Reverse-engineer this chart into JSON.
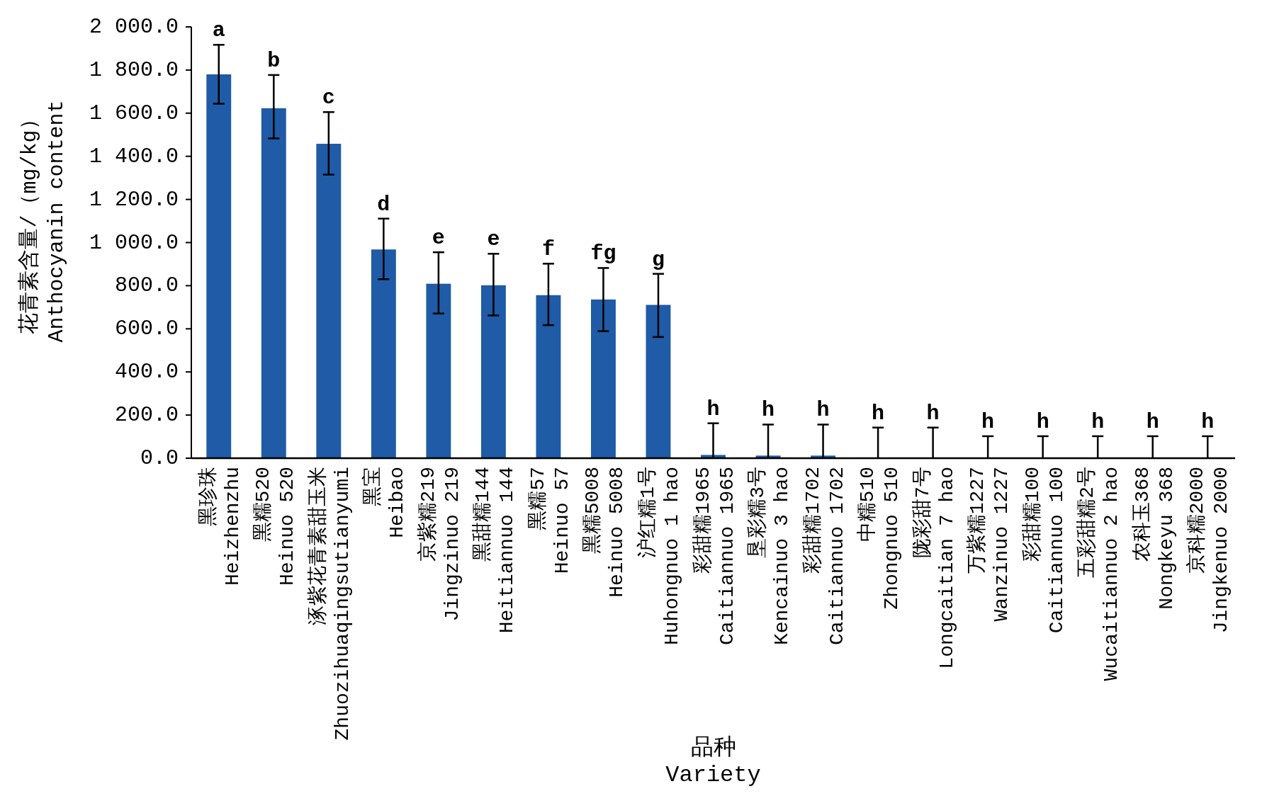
{
  "chart_data": {
    "type": "bar",
    "xlabel": "品种\nVariety",
    "ylabel": "花青素含量/（mg/kg）\nAnthocyanin content",
    "categories": [
      "黑珍珠\nHeizhenzhu",
      "黑糯520\nHeinuo 520",
      "涿紫花青素甜玉米\nZhuozihuaqingsutianyumi",
      "黑宝\nHeibao",
      "京紫糯219\nJingzinuo 219",
      "黑甜糯144\nHeitiannuo 144",
      "黑糯57\nHeinuo 57",
      "黑糯5008\nHeinuo 5008",
      "沪红糯1号\nHuhongnuo 1 hao",
      "彩甜糯1965\nCaitiannuo 1965",
      "垦彩糯3号\nKencainuo 3 hao",
      "彩甜糯1702\nCaitiannuo 1702",
      "中糯510\nZhongnuo 510",
      "陇彩甜7号\nLongcaitian 7 hao",
      "万紫糯1227\nWanzinuo 1227",
      "彩甜糯100\nCaitiannuo 100",
      "五彩甜糯2号\nWucaitiannuo 2 hao",
      "农科玉368\nNongkeyu 368",
      "京科糯2000\nJingkenuo 2000"
    ],
    "values": [
      1780,
      1623,
      1458,
      968,
      809,
      802,
      756,
      736,
      711,
      15,
      12,
      12,
      2,
      2,
      2,
      2,
      2,
      2,
      2
    ],
    "errors": [
      [
        1644,
        1917
      ],
      [
        1483,
        1777
      ],
      [
        1315,
        1605
      ],
      [
        830,
        1111
      ],
      [
        671,
        955
      ],
      [
        662,
        948
      ],
      [
        617,
        902
      ],
      [
        589,
        882
      ],
      [
        562,
        855
      ],
      [
        0,
        162
      ],
      [
        0,
        156
      ],
      [
        0,
        156
      ],
      [
        0,
        142
      ],
      [
        0,
        142
      ],
      [
        0,
        102
      ],
      [
        0,
        102
      ],
      [
        0,
        102
      ],
      [
        0,
        102
      ],
      [
        0,
        102
      ]
    ],
    "color": "#1f5ba6",
    "ylim": [
      0,
      2000
    ],
    "yticks": [
      {
        "value": 0,
        "label": "0.0"
      },
      {
        "value": 200,
        "label": "200.0"
      },
      {
        "value": 400,
        "label": "400.0"
      },
      {
        "value": 600,
        "label": "600.0"
      },
      {
        "value": 800,
        "label": "800.0"
      },
      {
        "value": 1000,
        "label": "1 000.0"
      },
      {
        "value": 1200,
        "label": "1 200.0"
      },
      {
        "value": 1400,
        "label": "1 400.0"
      },
      {
        "value": 1600,
        "label": "1 600.0"
      },
      {
        "value": 1800,
        "label": "1 800.0"
      },
      {
        "value": 2000,
        "label": "2 000.0"
      }
    ],
    "grid": false,
    "annotations": [
      {
        "text": "a",
        "x": "黑珍珠\nHeizhenzhu",
        "y": 1917
      },
      {
        "text": "b",
        "x": "黑糯520\nHeinuo 520",
        "y": 1777
      },
      {
        "text": "c",
        "x": "涿紫花青素甜玉米\nZhuozihuaqingsutianyumi",
        "y": 1605
      },
      {
        "text": "d",
        "x": "黑宝\nHeibao",
        "y": 1111
      },
      {
        "text": "e",
        "x": "京紫糯219\nJingzinuo 219",
        "y": 955
      },
      {
        "text": "e",
        "x": "黑甜糯144\nHeitiannuo 144",
        "y": 948
      },
      {
        "text": "f",
        "x": "黑糯57\nHeinuo 57",
        "y": 902
      },
      {
        "text": "fg",
        "x": "黑糯5008\nHeinuo 5008",
        "y": 882
      },
      {
        "text": "g",
        "x": "沪红糯1号\nHuhongnuo 1 hao",
        "y": 855
      },
      {
        "text": "h",
        "x": "彩甜糯1965\nCaitiannuo 1965",
        "y": 162
      },
      {
        "text": "h",
        "x": "垦彩糯3号\nKencainuo 3 hao",
        "y": 156
      },
      {
        "text": "h",
        "x": "彩甜糯1702\nCaitiannuo 1702",
        "y": 156
      },
      {
        "text": "h",
        "x": "中糯510\nZhongnuo 510",
        "y": 142
      },
      {
        "text": "h",
        "x": "陇彩甜7号\nLongcaitian 7 hao",
        "y": 142
      },
      {
        "text": "h",
        "x": "万紫糯1227\nWanzinuo 1227",
        "y": 102
      },
      {
        "text": "h",
        "x": "彩甜糯100\nCaitiannuo 100",
        "y": 102
      },
      {
        "text": "h",
        "x": "五彩甜糯2号\nWucaitiannuo 2 hao",
        "y": 102
      },
      {
        "text": "h",
        "x": "农科玉368\nNongkeyu 368",
        "y": 102
      },
      {
        "text": "h",
        "x": "京科糯2000\nJingkenuo 2000",
        "y": 102
      }
    ]
  }
}
